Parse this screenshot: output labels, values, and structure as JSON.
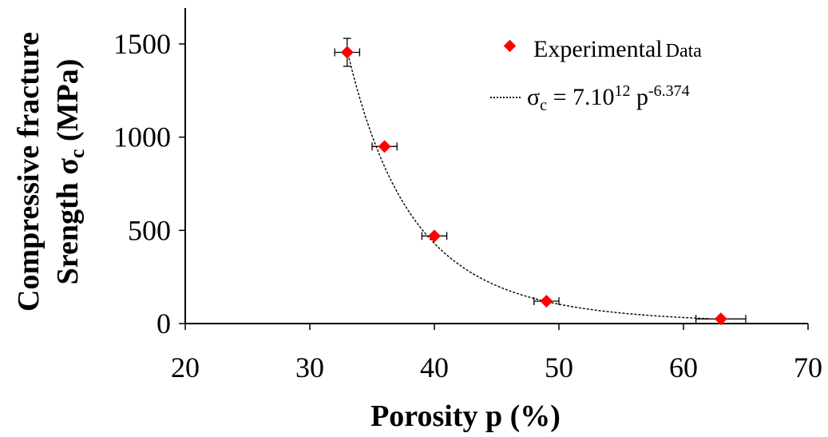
{
  "chart_data": {
    "type": "scatter",
    "xlabel": "Porosity p (%)",
    "ylabel_line1": "Compressive fracture",
    "ylabel_line2_main": "Srength σ",
    "ylabel_line2_sub": "c",
    "ylabel_line2_tail": " (MPa)",
    "xlim": [
      20,
      70
    ],
    "ylim": [
      0,
      1500
    ],
    "x_ticks": [
      "20",
      "30",
      "40",
      "50",
      "60",
      "70"
    ],
    "y_ticks": [
      "0",
      "500",
      "1000",
      "1500"
    ],
    "grid": false,
    "legend_position": "top-right",
    "series": [
      {
        "name": "Experimental Data",
        "legend_main": "Experimental",
        "legend_small": "Data",
        "marker": "diamond",
        "color": "#ff0000",
        "points": [
          {
            "x": 33,
            "y": 1455,
            "xerr": 1,
            "yerr": 75
          },
          {
            "x": 36,
            "y": 950,
            "xerr": 1,
            "yerr": 0
          },
          {
            "x": 40,
            "y": 470,
            "xerr": 1,
            "yerr": 0
          },
          {
            "x": 49,
            "y": 120,
            "xerr": 1,
            "yerr": 0
          },
          {
            "x": 63,
            "y": 25,
            "xerr": 2,
            "yerr": 0
          }
        ]
      },
      {
        "name": "σc = 7.10^12 p^-6.374",
        "legend_sigma": "σ",
        "legend_sigma_sub": "c",
        "legend_eq": " = 7.10",
        "legend_exp1": "12",
        "legend_p": " p",
        "legend_exp2": "-6.374",
        "type": "fit-curve",
        "style": "dotted",
        "color": "#000000",
        "coefficient": 7000000000000.0,
        "exponent": -6.374,
        "x_range": [
          33,
          62
        ]
      }
    ]
  }
}
